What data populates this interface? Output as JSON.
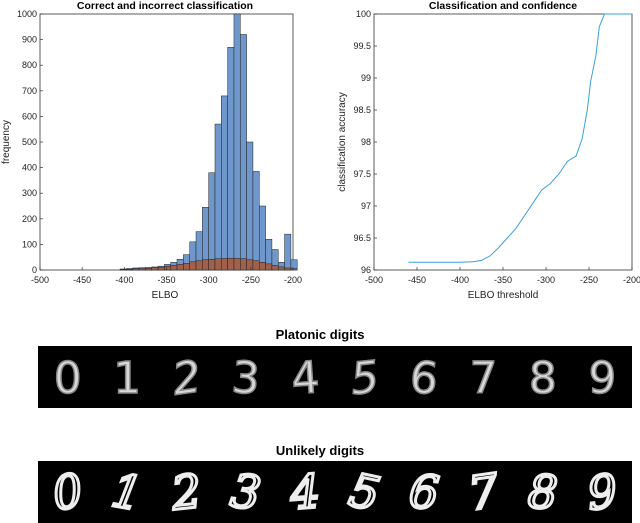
{
  "chart_data": [
    {
      "type": "bar",
      "title": "Correct and incorrect classification",
      "xlabel": "ELBO",
      "ylabel": "frequency",
      "xlim": [
        -500,
        -200
      ],
      "ylim": [
        0,
        1000
      ],
      "xticks": [
        -500,
        -450,
        -400,
        -350,
        -300,
        -250,
        -200
      ],
      "yticks": [
        0,
        100,
        200,
        300,
        400,
        500,
        600,
        700,
        800,
        900,
        1000
      ],
      "bin_width": 7.5,
      "bins": [
        -405,
        -397.5,
        -390,
        -382.5,
        -375,
        -367.5,
        -360,
        -352.5,
        -345,
        -337.5,
        -330,
        -322.5,
        -315,
        -307.5,
        -300,
        -292.5,
        -285,
        -277.5,
        -270,
        -262.5,
        -255,
        -247.5,
        -240,
        -232.5,
        -225,
        -217.5,
        -210,
        -202.5
      ],
      "series": [
        {
          "color": "#6f97cb",
          "values": [
            4,
            6,
            8,
            9,
            10,
            12,
            15,
            22,
            30,
            42,
            60,
            110,
            150,
            245,
            380,
            570,
            680,
            870,
            1000,
            920,
            500,
            385,
            250,
            120,
            80,
            30,
            140,
            40
          ]
        },
        {
          "color": "#a0604a",
          "values": [
            2,
            3,
            5,
            6,
            7,
            9,
            11,
            15,
            18,
            22,
            26,
            32,
            36,
            40,
            42,
            44,
            45,
            46,
            45,
            44,
            40,
            36,
            30,
            24,
            18,
            12,
            8,
            5
          ]
        }
      ],
      "grid": false,
      "legend": "none"
    },
    {
      "type": "line",
      "title": "Classification and confidence",
      "xlabel": "ELBO threshold",
      "ylabel": "classification accuracy",
      "xlim": [
        -500,
        -200
      ],
      "ylim": [
        96,
        100
      ],
      "xticks": [
        -500,
        -450,
        -400,
        -350,
        -300,
        -250,
        -200
      ],
      "yticks": [
        96,
        96.5,
        97,
        97.5,
        98,
        98.5,
        99,
        99.5,
        100
      ],
      "series": [
        {
          "color": "#3aa0d8",
          "x": [
            -460,
            -440,
            -420,
            -400,
            -385,
            -375,
            -365,
            -355,
            -345,
            -335,
            -325,
            -315,
            -305,
            -295,
            -285,
            -275,
            -265,
            -258,
            -252,
            -248,
            -242,
            -238,
            -232,
            -228,
            -200
          ],
          "y": [
            96.12,
            96.12,
            96.12,
            96.12,
            96.13,
            96.15,
            96.22,
            96.35,
            96.5,
            96.65,
            96.85,
            97.05,
            97.25,
            97.35,
            97.5,
            97.7,
            97.78,
            98.05,
            98.5,
            98.95,
            99.35,
            99.8,
            100,
            100,
            100
          ]
        }
      ],
      "grid": false,
      "legend": "none"
    }
  ],
  "digits": {
    "platonic_title": "Platonic digits",
    "unlikely_title": "Unlikely digits",
    "platonic_labels": [
      "0",
      "1",
      "2",
      "3",
      "4",
      "5",
      "6",
      "7",
      "8",
      "9"
    ],
    "unlikely_labels": [
      "0",
      "1",
      "2",
      "3",
      "4",
      "5",
      "6",
      "7",
      "8",
      "9"
    ]
  }
}
